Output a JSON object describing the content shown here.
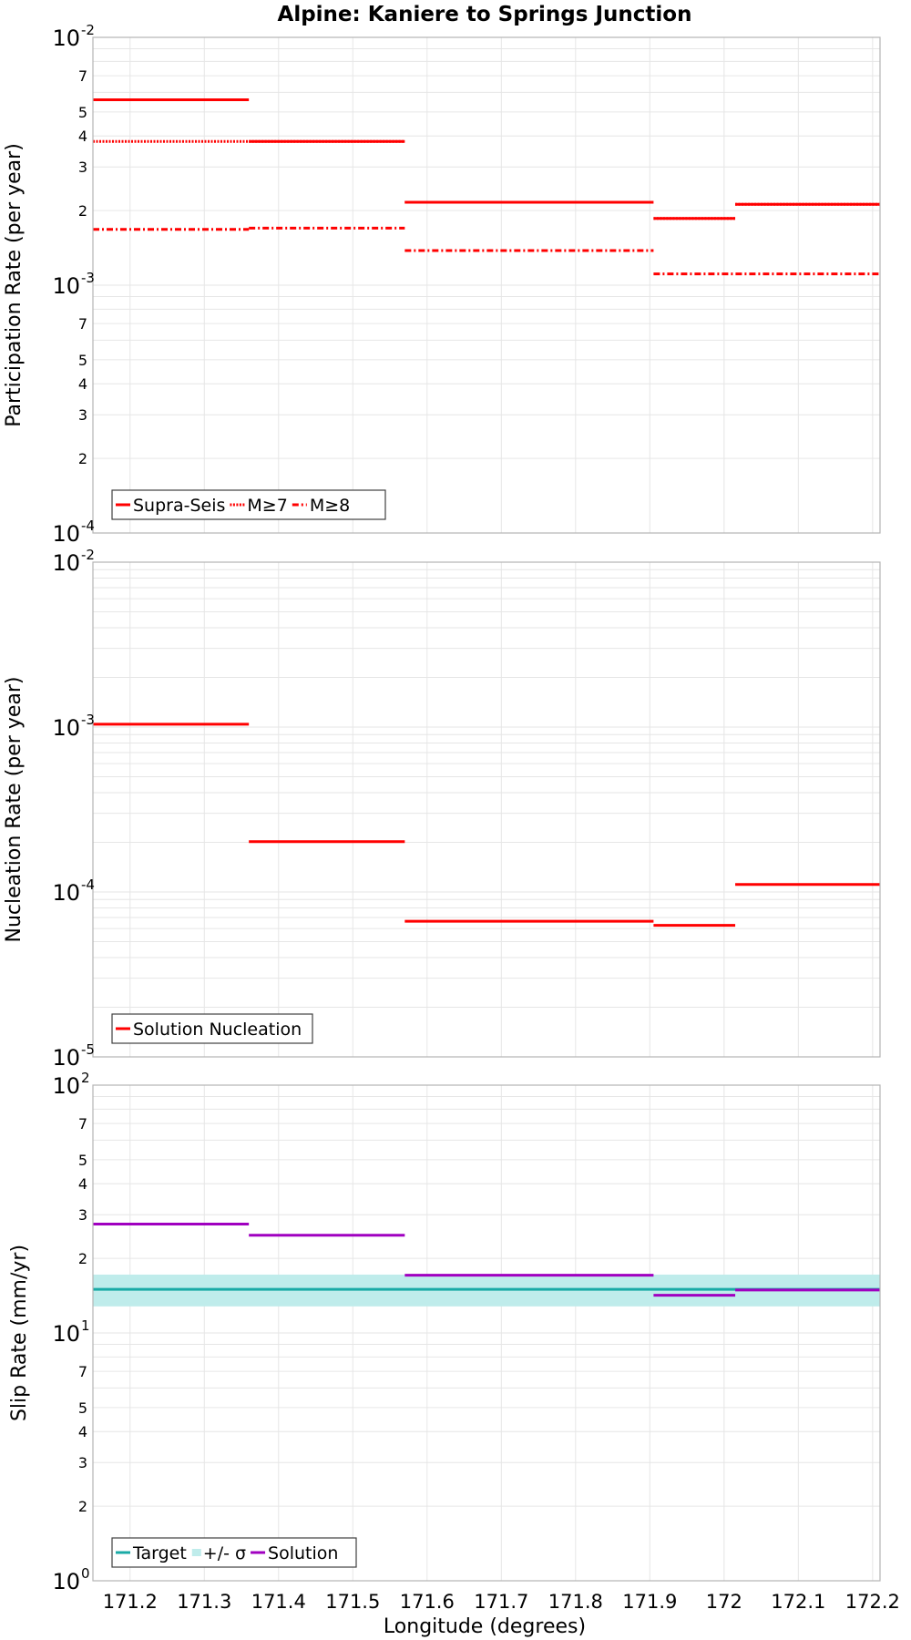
{
  "title": "Alpine: Kaniere to Springs Junction",
  "x_axis": {
    "label": "Longitude (degrees)",
    "range": [
      171.15,
      172.21
    ],
    "ticks": [
      171.2,
      171.3,
      171.4,
      171.5,
      171.6,
      171.7,
      171.8,
      171.9,
      172.0,
      172.1,
      172.2
    ],
    "tick_labels": [
      "171.2",
      "171.3",
      "171.4",
      "171.5",
      "171.6",
      "171.7",
      "171.8",
      "171.9",
      "172",
      "172.1",
      "172.2"
    ]
  },
  "colors": {
    "red": "#ff0000",
    "teal": "#1aaaa6",
    "band": "#bfeceb",
    "purple": "#a000c0",
    "grid": "#e6e6e6",
    "frame": "#b4b4b4"
  },
  "chart_data": [
    {
      "type": "line",
      "panel": "participation",
      "ylabel": "Participation Rate (per year)",
      "yscale": "log",
      "ylim": [
        0.0001,
        0.01
      ],
      "major_ticks": [
        {
          "base": "10",
          "exp": "-4"
        },
        {
          "base": "10",
          "exp": "-3"
        },
        {
          "base": "10",
          "exp": "-2"
        }
      ],
      "minor_tick_labels": [
        "2",
        "3",
        "4",
        "5",
        "7"
      ],
      "legend": [
        "Supra-Seis",
        "M≥7",
        "M≥8"
      ],
      "legend_position": "bottom-left",
      "series": [
        {
          "name": "Supra-Seis",
          "style": "solid",
          "segments": [
            {
              "x": [
                171.15,
                171.36
              ],
              "y": 0.0056
            },
            {
              "x": [
                171.36,
                171.57
              ],
              "y": 0.0038
            },
            {
              "x": [
                171.57,
                171.905
              ],
              "y": 0.00216
            },
            {
              "x": [
                171.905,
                172.015
              ],
              "y": 0.00186
            },
            {
              "x": [
                172.015,
                172.21
              ],
              "y": 0.00212
            }
          ]
        },
        {
          "name": "M≥7",
          "style": "dotted",
          "segments": [
            {
              "x": [
                171.15,
                171.36
              ],
              "y": 0.0038
            },
            {
              "x": [
                171.36,
                171.57
              ],
              "y": 0.0038
            },
            {
              "x": [
                171.57,
                171.905
              ],
              "y": 0.00216
            },
            {
              "x": [
                171.905,
                172.015
              ],
              "y": 0.00186
            },
            {
              "x": [
                172.015,
                172.21
              ],
              "y": 0.00212
            }
          ]
        },
        {
          "name": "M≥8",
          "style": "dashdot",
          "segments": [
            {
              "x": [
                171.15,
                171.36
              ],
              "y": 0.00168
            },
            {
              "x": [
                171.36,
                171.57
              ],
              "y": 0.0017
            },
            {
              "x": [
                171.57,
                171.905
              ],
              "y": 0.00138
            },
            {
              "x": [
                171.905,
                172.21
              ],
              "y": 0.00111
            }
          ]
        }
      ]
    },
    {
      "type": "line",
      "panel": "nucleation",
      "ylabel": "Nucleation Rate (per year)",
      "yscale": "log",
      "ylim": [
        1e-05,
        0.01
      ],
      "major_ticks": [
        {
          "base": "10",
          "exp": "-5"
        },
        {
          "base": "10",
          "exp": "-4"
        },
        {
          "base": "10",
          "exp": "-3"
        },
        {
          "base": "10",
          "exp": "-2"
        }
      ],
      "minor_tick_labels": [],
      "legend": [
        "Solution Nucleation"
      ],
      "legend_position": "bottom-left",
      "series": [
        {
          "name": "Solution Nucleation",
          "style": "solid",
          "segments": [
            {
              "x": [
                171.15,
                171.36
              ],
              "y": 0.00104
            },
            {
              "x": [
                171.36,
                171.57
              ],
              "y": 0.000202
            },
            {
              "x": [
                171.57,
                171.905
              ],
              "y": 6.65e-05
            },
            {
              "x": [
                171.905,
                172.015
              ],
              "y": 6.28e-05
            },
            {
              "x": [
                172.015,
                172.21
              ],
              "y": 0.000111
            }
          ]
        }
      ]
    },
    {
      "type": "line",
      "panel": "slip",
      "ylabel": "Slip Rate (mm/yr)",
      "yscale": "log",
      "ylim": [
        1,
        100
      ],
      "major_ticks": [
        {
          "base": "10",
          "exp": "0"
        },
        {
          "base": "10",
          "exp": "1"
        },
        {
          "base": "10",
          "exp": "2"
        }
      ],
      "minor_tick_labels": [
        "2",
        "3",
        "4",
        "5",
        "7"
      ],
      "legend": [
        "Target",
        "+/- σ",
        "Solution"
      ],
      "legend_position": "bottom-left",
      "band": {
        "name": "+/- σ",
        "x": [
          171.15,
          172.21
        ],
        "y": [
          12.8,
          17.2
        ]
      },
      "series": [
        {
          "name": "Target",
          "style": "solid",
          "segments": [
            {
              "x": [
                171.15,
                172.21
              ],
              "y": 15
            }
          ]
        },
        {
          "name": "Solution",
          "style": "solid",
          "segments": [
            {
              "x": [
                171.15,
                171.36
              ],
              "y": 27.5
            },
            {
              "x": [
                171.36,
                171.57
              ],
              "y": 24.8
            },
            {
              "x": [
                171.57,
                171.905
              ],
              "y": 17.1
            },
            {
              "x": [
                171.905,
                172.015
              ],
              "y": 14.2
            },
            {
              "x": [
                172.015,
                172.21
              ],
              "y": 14.9
            }
          ]
        }
      ]
    }
  ]
}
